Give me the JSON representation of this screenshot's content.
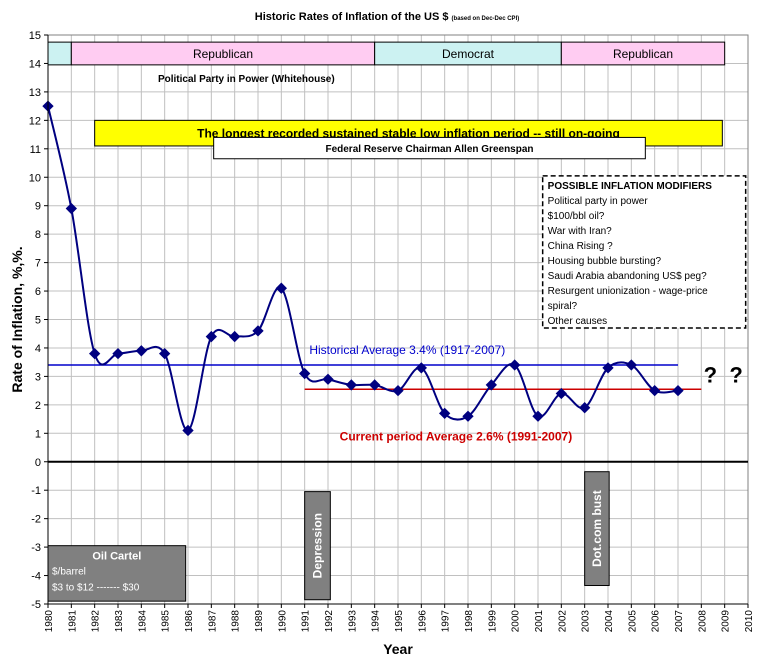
{
  "chart_data": {
    "type": "line",
    "title": "Historic Rates of Inflation of the US $",
    "subtitle": "(based on Dec-Dec CPI)",
    "xlabel": "Year",
    "ylabel": "Rate of Inflation, %,%.",
    "xlim": [
      1980,
      2010
    ],
    "ylim": [
      -5,
      15
    ],
    "grid": true,
    "x": [
      1980,
      1981,
      1982,
      1983,
      1984,
      1985,
      1986,
      1987,
      1988,
      1989,
      1990,
      1991,
      1992,
      1993,
      1994,
      1995,
      1996,
      1997,
      1998,
      1999,
      2000,
      2001,
      2002,
      2003,
      2004,
      2005,
      2006,
      2007
    ],
    "series": [
      {
        "values": [
          12.5,
          8.9,
          3.8,
          3.8,
          3.9,
          3.8,
          1.1,
          4.4,
          4.4,
          4.6,
          6.1,
          3.1,
          2.9,
          2.7,
          2.7,
          2.5,
          3.3,
          1.7,
          1.6,
          2.7,
          3.4,
          1.6,
          2.4,
          1.9,
          3.3,
          3.4,
          2.5,
          2.5
        ],
        "color": "#000080"
      }
    ],
    "averages": [
      {
        "label": "Historical Average 3.4%  (1917-2007)",
        "value": 3.4,
        "from": 1980,
        "to": 2007,
        "color": "#0000cc"
      },
      {
        "label": "Current period Average 2.6%  (1991-2007)",
        "value": 2.55,
        "from": 1991,
        "to": 2008,
        "color": "#cc0000"
      }
    ],
    "party_bands": {
      "caption": "Political Party in Power (Whitehouse)",
      "periods": [
        {
          "label": "",
          "from": 1980,
          "to": 1981,
          "color": "#ccf2f2"
        },
        {
          "label": "Republican",
          "from": 1981,
          "to": 1994,
          "color": "#ffccf2"
        },
        {
          "label": "Democrat",
          "from": 1994,
          "to": 2002,
          "color": "#ccf2f2"
        },
        {
          "label": "Republican",
          "from": 2002,
          "to": 2009,
          "color": "#ffccf2"
        }
      ]
    },
    "annotations": {
      "low_inflation": "The longest recorded sustained  stable low inflation period -- still on-going",
      "greenspan": "Federal Reserve Chairman Allen Greenspan",
      "modifiers_title": "POSSIBLE INFLATION MODIFIERS",
      "modifiers": [
        "Political party in power",
        "$100/bbl oil?",
        "War with Iran?",
        "China Rising ?",
        "Housing bubble bursting?",
        "Saudi Arabia abandoning US$ peg?",
        "Resurgent unionization - wage-price",
        "spiral?",
        "Other causes"
      ],
      "question_marks": "?  ?",
      "oil_cartel_title": "Oil Cartel",
      "oil_cartel_lines": [
        "$/barrel",
        "$3 to $12  ------- $30"
      ],
      "depression": "Depression",
      "dotcom": "Dot.com bust"
    }
  }
}
